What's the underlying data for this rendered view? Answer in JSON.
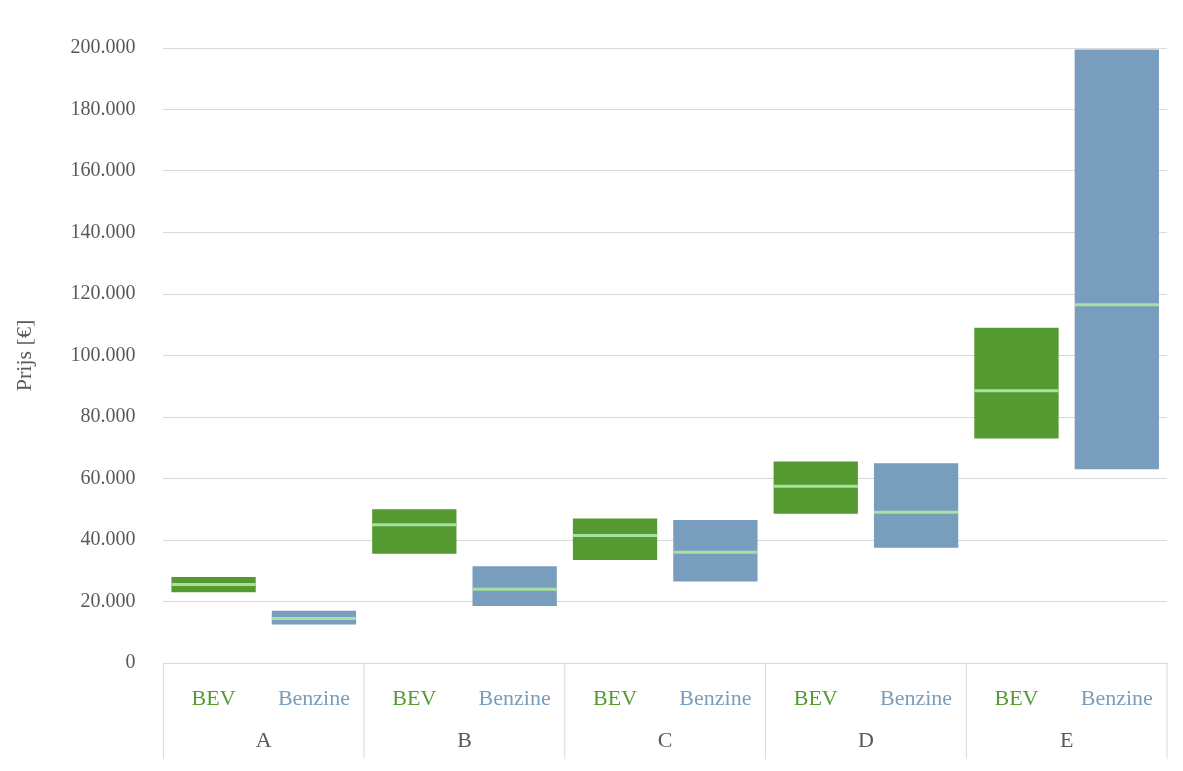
{
  "chart_data": {
    "type": "box",
    "ylabel": "Prijs [€]",
    "categories": [
      "A",
      "B",
      "C",
      "D",
      "E"
    ],
    "series": [
      {
        "name": "BEV",
        "color": "#559a30",
        "boxes": [
          {
            "low": 23000,
            "q1": 23000,
            "median": 25500,
            "q3": 28000,
            "high": 28000
          },
          {
            "low": 35500,
            "q1": 35500,
            "median": 45000,
            "q3": 50000,
            "high": 50000
          },
          {
            "low": 33500,
            "q1": 33500,
            "median": 41500,
            "q3": 47000,
            "high": 47000
          },
          {
            "low": 48500,
            "q1": 48500,
            "median": 57500,
            "q3": 65500,
            "high": 65500
          },
          {
            "low": 73000,
            "q1": 73000,
            "median": 88500,
            "q3": 109000,
            "high": 109000
          }
        ]
      },
      {
        "name": "Benzine",
        "color": "#789dbd",
        "boxes": [
          {
            "low": 12500,
            "q1": 12500,
            "median": 14500,
            "q3": 17000,
            "high": 17000
          },
          {
            "low": 18500,
            "q1": 18500,
            "median": 24000,
            "q3": 31500,
            "high": 31500
          },
          {
            "low": 26500,
            "q1": 26500,
            "median": 36000,
            "q3": 46500,
            "high": 46500
          },
          {
            "low": 37500,
            "q1": 37500,
            "median": 49000,
            "q3": 65000,
            "high": 65000
          },
          {
            "low": 63000,
            "q1": 63000,
            "median": 116500,
            "q3": 199500,
            "high": 199500
          }
        ]
      }
    ],
    "ylim": [
      0,
      200000
    ],
    "yticks": [
      {
        "value": 0,
        "label": "0"
      },
      {
        "value": 20000,
        "label": "20.000"
      },
      {
        "value": 40000,
        "label": "40.000"
      },
      {
        "value": 60000,
        "label": "60.000"
      },
      {
        "value": 80000,
        "label": "80.000"
      },
      {
        "value": 100000,
        "label": "100.000"
      },
      {
        "value": 120000,
        "label": "120.000"
      },
      {
        "value": 140000,
        "label": "140.000"
      },
      {
        "value": 160000,
        "label": "160.000"
      },
      {
        "value": 180000,
        "label": "180.000"
      },
      {
        "value": 200000,
        "label": "200.000"
      }
    ],
    "grid": "y",
    "legend": false
  }
}
